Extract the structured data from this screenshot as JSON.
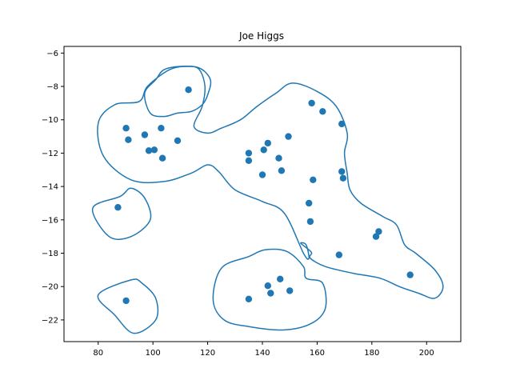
{
  "chart_data": {
    "type": "scatter",
    "title": "Joe Higgs",
    "xlabel": "",
    "ylabel": "",
    "xlim": [
      67.5,
      212.5
    ],
    "ylim": [
      -23.3,
      -5.6
    ],
    "xticks": [
      80,
      100,
      120,
      140,
      160,
      180,
      200
    ],
    "yticks": [
      -6,
      -8,
      -10,
      -12,
      -14,
      -16,
      -18,
      -20,
      -22
    ],
    "grid": false,
    "color": "#1f77b4",
    "points": [
      [
        87.2,
        -15.25
      ],
      [
        90.2,
        -10.5
      ],
      [
        91.0,
        -11.2
      ],
      [
        90.2,
        -20.85
      ],
      [
        97.0,
        -10.9
      ],
      [
        98.5,
        -11.85
      ],
      [
        100.5,
        -11.8
      ],
      [
        103.0,
        -10.5
      ],
      [
        103.5,
        -12.3
      ],
      [
        109.0,
        -11.25
      ],
      [
        113.0,
        -8.2
      ],
      [
        135.0,
        -12.0
      ],
      [
        135.0,
        -12.45
      ],
      [
        135.0,
        -20.75
      ],
      [
        140.0,
        -13.3
      ],
      [
        140.5,
        -11.8
      ],
      [
        142.0,
        -11.4
      ],
      [
        142.0,
        -19.95
      ],
      [
        143.0,
        -20.4
      ],
      [
        146.0,
        -12.3
      ],
      [
        146.5,
        -19.55
      ],
      [
        147.0,
        -13.05
      ],
      [
        149.5,
        -11.0
      ],
      [
        150.0,
        -20.25
      ],
      [
        157.0,
        -15.0
      ],
      [
        157.5,
        -16.1
      ],
      [
        158.0,
        -9.0
      ],
      [
        158.5,
        -13.6
      ],
      [
        162.0,
        -9.5
      ],
      [
        168.0,
        -18.1
      ],
      [
        169.0,
        -10.25
      ],
      [
        169.0,
        -13.1
      ],
      [
        169.5,
        -13.5
      ],
      [
        181.5,
        -17.0
      ],
      [
        182.5,
        -16.7
      ],
      [
        194.0,
        -19.3
      ]
    ],
    "contours": [
      [
        [
          113,
          -6.8
        ],
        [
          106,
          -7
        ],
        [
          98,
          -8
        ],
        [
          95,
          -8.9
        ],
        [
          86,
          -9.1
        ],
        [
          80,
          -10.2
        ],
        [
          82,
          -12.2
        ],
        [
          92,
          -13.6
        ],
        [
          104,
          -13.7
        ],
        [
          114,
          -13.2
        ],
        [
          120,
          -12.7
        ],
        [
          124,
          -13.1
        ],
        [
          130,
          -14.2
        ],
        [
          140,
          -14.9
        ],
        [
          148,
          -15.6
        ],
        [
          155,
          -18.0
        ],
        [
          157,
          -18.3
        ],
        [
          156,
          -17.5
        ],
        [
          154,
          -17.4
        ],
        [
          157,
          -17.8
        ],
        [
          158,
          -18.0
        ],
        [
          157.5,
          -18.3
        ],
        [
          163,
          -18.8
        ],
        [
          173,
          -19.2
        ],
        [
          183,
          -19.5
        ],
        [
          190,
          -20.0
        ],
        [
          197,
          -20.4
        ],
        [
          203,
          -20.7
        ],
        [
          206,
          -20.0
        ],
        [
          203,
          -19.0
        ],
        [
          196,
          -18.0
        ],
        [
          192,
          -17.5
        ],
        [
          189,
          -16.3
        ],
        [
          184,
          -15.8
        ],
        [
          176,
          -15.0
        ],
        [
          172,
          -14.2
        ],
        [
          171,
          -13.2
        ],
        [
          170,
          -12.0
        ],
        [
          171,
          -10.8
        ],
        [
          167,
          -9.2
        ],
        [
          160,
          -8.3
        ],
        [
          151,
          -7.8
        ],
        [
          145,
          -8.4
        ],
        [
          138,
          -9.2
        ],
        [
          132,
          -10.0
        ],
        [
          125,
          -10.5
        ],
        [
          120,
          -10.8
        ],
        [
          115,
          -10.4
        ],
        [
          118,
          -9.2
        ],
        [
          119,
          -8.0
        ],
        [
          117,
          -7.0
        ]
      ],
      [
        [
          101,
          -7.6
        ],
        [
          97,
          -8.4
        ],
        [
          99,
          -9.6
        ],
        [
          104,
          -9.8
        ],
        [
          109,
          -9.6
        ],
        [
          114,
          -9.5
        ],
        [
          118,
          -9.1
        ],
        [
          120,
          -8.5
        ],
        [
          121,
          -7.6
        ],
        [
          117,
          -6.9
        ],
        [
          110,
          -6.8
        ],
        [
          104,
          -7.0
        ]
      ],
      [
        [
          88,
          -14.6
        ],
        [
          78,
          -15.3
        ],
        [
          84,
          -17.0
        ],
        [
          92,
          -17.0
        ],
        [
          99,
          -16.0
        ],
        [
          97,
          -14.7
        ],
        [
          92,
          -14.1
        ]
      ],
      [
        [
          92,
          -19.6
        ],
        [
          80,
          -20.5
        ],
        [
          86,
          -21.7
        ],
        [
          93,
          -22.8
        ],
        [
          101,
          -22.0
        ],
        [
          101,
          -20.7
        ],
        [
          96,
          -19.8
        ]
      ],
      [
        [
          135,
          -18.2
        ],
        [
          125,
          -18.9
        ],
        [
          122,
          -20.8
        ],
        [
          126,
          -22.0
        ],
        [
          135,
          -22.4
        ],
        [
          148,
          -22.6
        ],
        [
          158,
          -22.2
        ],
        [
          163,
          -21.3
        ],
        [
          162,
          -19.8
        ],
        [
          156,
          -19.5
        ],
        [
          155,
          -18.8
        ],
        [
          149,
          -17.9
        ],
        [
          141,
          -17.8
        ]
      ]
    ]
  }
}
